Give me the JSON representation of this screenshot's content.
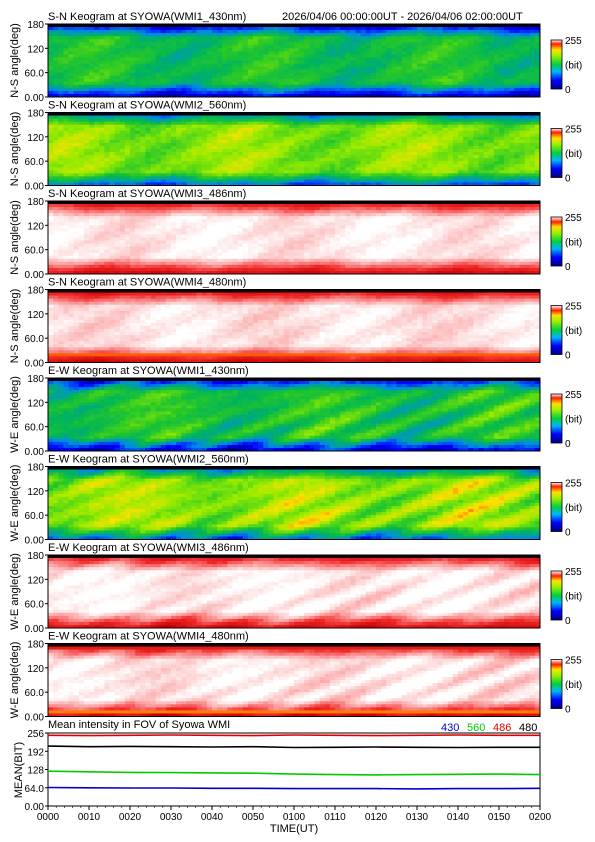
{
  "header": {
    "time_range": "2026/04/06 00:00:00UT - 2026/04/06 02:00:00UT"
  },
  "keograms": [
    {
      "title": "S-N Keogram at SYOWA(WMI1_430nm)",
      "ylabel": "N-S angle(deg)",
      "palette": "rainbow",
      "level": 0.5,
      "edge_dark": true,
      "streaks": false
    },
    {
      "title": "S-N Keogram at SYOWA(WMI2_560nm)",
      "ylabel": "N-S angle(deg)",
      "palette": "rainbow",
      "level": 0.66,
      "edge_dark": true,
      "streaks": false
    },
    {
      "title": "S-N Keogram at SYOWA(WMI3_486nm)",
      "ylabel": "N-S angle(deg)",
      "palette": "red",
      "level": 0.95,
      "edge_dark": false,
      "streaks": false
    },
    {
      "title": "S-N Keogram at SYOWA(WMI4_480nm)",
      "ylabel": "N-S angle(deg)",
      "palette": "red",
      "level": 0.93,
      "edge_dark": false,
      "streaks": false
    },
    {
      "title": "E-W Keogram at SYOWA(WMI1_430nm)",
      "ylabel": "W-E angle(deg)",
      "palette": "rainbow",
      "level": 0.52,
      "edge_dark": true,
      "streaks": true
    },
    {
      "title": "E-W Keogram at SYOWA(WMI2_560nm)",
      "ylabel": "W-E angle(deg)",
      "palette": "rainbow",
      "level": 0.68,
      "edge_dark": true,
      "streaks": true
    },
    {
      "title": "E-W Keogram at SYOWA(WMI3_486nm)",
      "ylabel": "W-E angle(deg)",
      "palette": "red",
      "level": 0.96,
      "edge_dark": false,
      "streaks": true
    },
    {
      "title": "E-W Keogram at SYOWA(WMI4_480nm)",
      "ylabel": "W-E angle(deg)",
      "palette": "red",
      "level": 0.94,
      "edge_dark": false,
      "streaks": true
    }
  ],
  "keogram_yticks": [
    "0.00",
    "60.0",
    "120",
    "180"
  ],
  "colorbar": {
    "max_label": "255",
    "unit_label": "(bit)",
    "min_label": "0"
  },
  "chart_data": {
    "type": "line",
    "title": "Mean intensity in FOV of Syowa WMI",
    "xlabel": "TIME(UT)",
    "ylabel": "MEAN(BIT)",
    "xticks": [
      "0000",
      "0010",
      "0020",
      "0030",
      "0040",
      "0050",
      "0100",
      "0110",
      "0120",
      "0130",
      "0140",
      "0150",
      "0200"
    ],
    "yticks": [
      "0.00",
      "64.0",
      "128",
      "192",
      "256"
    ],
    "ylim": [
      0,
      256
    ],
    "x": [
      "0000",
      "0010",
      "0020",
      "0030",
      "0040",
      "0050",
      "0100",
      "0110",
      "0120",
      "0130",
      "0140",
      "0150",
      "0200"
    ],
    "series": [
      {
        "name": "430",
        "color": "#0000cc",
        "values": [
          65,
          64,
          63,
          63,
          62,
          62,
          61,
          61,
          61,
          60,
          61,
          61,
          62
        ]
      },
      {
        "name": "560",
        "color": "#00cc00",
        "values": [
          122,
          120,
          118,
          117,
          116,
          115,
          112,
          110,
          109,
          110,
          111,
          112,
          110
        ]
      },
      {
        "name": "486",
        "color": "#dd0000",
        "values": [
          248,
          247,
          248,
          249,
          248,
          247,
          249,
          248,
          247,
          248,
          249,
          248,
          248
        ]
      },
      {
        "name": "480",
        "color": "#000000",
        "values": [
          210,
          208,
          209,
          208,
          207,
          208,
          205,
          206,
          207,
          206,
          205,
          206,
          206
        ]
      }
    ]
  }
}
